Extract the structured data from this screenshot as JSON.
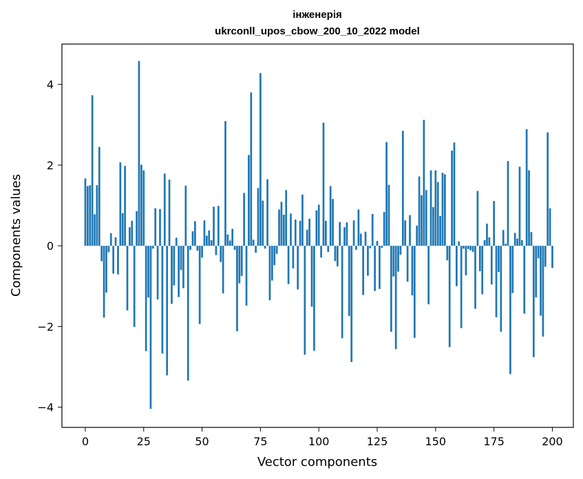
{
  "chart_data": {
    "type": "bar",
    "title_line1": "інженерія",
    "title_line2": "ukrconll_upos_cbow_200_10_2022 model",
    "xlabel": "Vector components",
    "ylabel": "Components values",
    "xlim": [
      -10,
      209
    ],
    "ylim": [
      -4.5,
      5.0
    ],
    "xticks": [
      0,
      25,
      50,
      75,
      100,
      125,
      150,
      175,
      200
    ],
    "xtick_labels": [
      "0",
      "25",
      "50",
      "75",
      "100",
      "125",
      "150",
      "175",
      "200"
    ],
    "yticks": [
      -4,
      -2,
      0,
      2,
      4
    ],
    "ytick_labels": [
      "−4",
      "−2",
      "0",
      "2",
      "4"
    ],
    "bar_color": "#1f77b4",
    "grid": false,
    "values": [
      1.67,
      1.48,
      1.5,
      3.73,
      0.78,
      1.5,
      2.45,
      -0.38,
      -1.78,
      -1.16,
      -0.16,
      0.31,
      -0.69,
      0.21,
      -0.71,
      2.07,
      0.81,
      1.98,
      -1.6,
      0.46,
      0.62,
      -2.01,
      0.86,
      4.58,
      2.01,
      1.87,
      -2.61,
      -1.28,
      -4.04,
      -0.07,
      0.93,
      -1.33,
      0.91,
      -2.67,
      1.79,
      -3.21,
      1.64,
      -1.44,
      -0.98,
      0.2,
      -1.27,
      -0.6,
      -1.05,
      1.49,
      -3.34,
      -0.1,
      0.36,
      0.61,
      -0.12,
      -1.94,
      -0.29,
      0.63,
      0.25,
      0.38,
      0.14,
      0.97,
      -0.23,
      0.99,
      -0.4,
      -1.18,
      3.09,
      0.28,
      0.13,
      0.42,
      -0.1,
      -2.12,
      -0.93,
      -0.75,
      1.31,
      -1.48,
      2.25,
      3.8,
      0.15,
      -0.17,
      1.43,
      4.28,
      1.12,
      -0.07,
      1.65,
      -1.35,
      -0.86,
      -0.48,
      -0.2,
      0.9,
      1.09,
      0.77,
      1.38,
      -0.95,
      0.8,
      -0.56,
      0.65,
      -1.08,
      0.62,
      1.27,
      -2.7,
      0.4,
      0.67,
      -1.51,
      -2.6,
      0.88,
      1.02,
      -0.29,
      3.05,
      0.62,
      -0.15,
      1.48,
      1.16,
      -0.38,
      -0.51,
      0.59,
      -2.29,
      0.46,
      0.58,
      -1.74,
      -2.88,
      0.63,
      -0.1,
      0.9,
      0.3,
      -1.22,
      0.35,
      -0.74,
      -0.06,
      0.79,
      -1.12,
      0.12,
      -1.07,
      -0.05,
      0.84,
      2.57,
      1.51,
      -2.13,
      -0.76,
      -2.56,
      -0.64,
      -0.22,
      2.85,
      0.63,
      -0.89,
      0.76,
      -1.23,
      -2.28,
      0.5,
      1.72,
      1.25,
      3.12,
      1.38,
      -1.45,
      1.87,
      0.96,
      1.87,
      1.58,
      0.74,
      1.81,
      1.77,
      -0.36,
      -2.51,
      2.36,
      2.56,
      -1.0,
      0.11,
      -2.04,
      -0.07,
      -0.73,
      -0.08,
      -0.11,
      -0.15,
      -1.56,
      1.36,
      -0.63,
      -1.2,
      0.14,
      0.55,
      0.21,
      -0.96,
      1.11,
      -1.77,
      -0.65,
      -2.13,
      0.39,
      0.05,
      2.1,
      -3.18,
      -1.17,
      0.32,
      0.18,
      1.96,
      0.14,
      -1.68,
      2.89,
      1.87,
      0.34,
      -2.76,
      -1.28,
      -0.31,
      -1.73,
      -2.25,
      -0.52,
      2.81,
      0.93,
      -0.55
    ]
  }
}
